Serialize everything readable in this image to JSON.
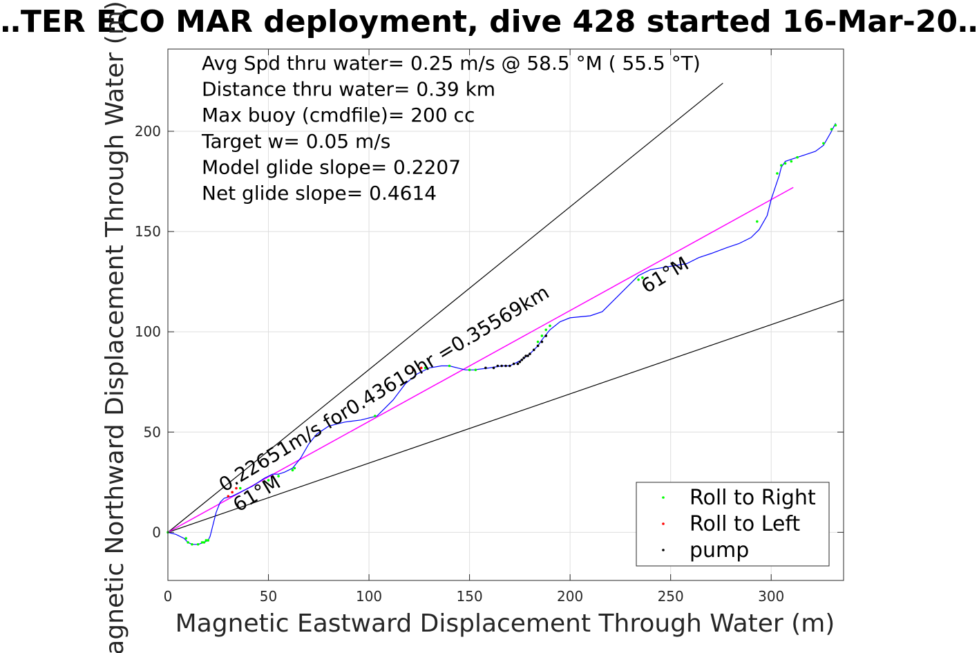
{
  "chart_data": {
    "type": "scatter",
    "title": "…TER ECO MAR deployment, dive 428 started 16-Mar-20…",
    "xlabel": "Magnetic Eastward Displacement Through Water (m)",
    "ylabel": "Magnetic Northward Displacement Through Water (m)",
    "xlim": [
      0,
      336
    ],
    "ylim": [
      -24,
      241
    ],
    "xticks": [
      0,
      50,
      100,
      150,
      200,
      250,
      300
    ],
    "yticks": [
      0,
      50,
      100,
      150,
      200
    ],
    "grid": true,
    "legend_position": "bottom-right",
    "stats_lines": [
      "Avg Spd thru water=  0.25 m/s @  58.5 °M ( 55.5 °T)",
      "Distance thru water=  0.39 km",
      "Max buoy (cmdfile)= 200 cc",
      "Target w= 0.05 m/s",
      "Model glide slope= 0.2207",
      "Net glide slope= 0.4614"
    ],
    "annotations": [
      {
        "text": "0.22651m/s for0.43619hr =0.35569km",
        "x": 28,
        "y": 20,
        "angle_deg": 31
      },
      {
        "text": "61°M",
        "x": 35,
        "y": 10,
        "angle_deg": 31
      },
      {
        "text": "61°M",
        "x": 238,
        "y": 119,
        "angle_deg": 31
      }
    ],
    "colors": {
      "track": "#0000ff",
      "roll_right": "#00ff00",
      "roll_left": "#ff0000",
      "pump": "#000000",
      "avg_line": "#ff00ff",
      "bound_lines": "#000000"
    },
    "track_line": {
      "x": [
        0,
        4,
        8,
        10,
        12,
        15,
        18,
        20,
        21,
        22,
        24,
        26,
        28,
        32,
        36,
        42,
        48,
        52,
        55,
        58,
        62,
        66,
        70,
        74,
        80,
        88,
        96,
        104,
        108,
        112,
        118,
        124,
        130,
        136,
        140,
        144,
        148,
        152,
        160,
        166,
        170,
        172,
        174,
        176,
        180,
        184,
        186,
        190,
        195,
        200,
        210,
        216,
        222,
        228,
        234,
        240,
        246,
        252,
        258,
        264,
        270,
        278,
        284,
        290,
        294,
        298,
        300,
        302,
        304,
        305,
        307,
        310,
        316,
        322,
        326,
        330,
        332
      ],
      "y": [
        0,
        -1,
        -3,
        -5,
        -6,
        -6,
        -5,
        -4,
        -2,
        2,
        10,
        15,
        17,
        18,
        20,
        23,
        27,
        29,
        29,
        30,
        32,
        37,
        44,
        49,
        53,
        55,
        56,
        58,
        62,
        66,
        74,
        79,
        82,
        83,
        83,
        82,
        81,
        81,
        82,
        83,
        83,
        84,
        85,
        86,
        89,
        93,
        96,
        101,
        105,
        107,
        108,
        110,
        116,
        122,
        128,
        131,
        132,
        133,
        134,
        137,
        139,
        142,
        144,
        147,
        151,
        158,
        166,
        172,
        178,
        182,
        185,
        186,
        188,
        190,
        193,
        200,
        204
      ]
    },
    "avg_line": {
      "x": [
        0,
        311
      ],
      "y": [
        0,
        172
      ]
    },
    "bound_lines": [
      {
        "x": [
          0,
          276
        ],
        "y": [
          0,
          224
        ]
      },
      {
        "x": [
          0,
          336
        ],
        "y": [
          0,
          116
        ]
      }
    ],
    "series": [
      {
        "name": "Roll to Right",
        "x": [
          0,
          9,
          10,
          12,
          15,
          17,
          18,
          19,
          20,
          36,
          50,
          55,
          62,
          63,
          103,
          128,
          140,
          150,
          153,
          184,
          186,
          188,
          190,
          234,
          236,
          293,
          303,
          305,
          307,
          310,
          313,
          326,
          330,
          332
        ],
        "y": [
          0,
          -3,
          -5,
          -6,
          -6,
          -5,
          -5,
          -4,
          -4,
          22,
          26,
          28,
          31,
          32,
          58,
          82,
          83,
          81,
          81,
          95,
          98,
          101,
          103,
          126,
          127,
          155,
          179,
          183,
          184,
          185,
          187,
          194,
          201,
          203
        ]
      },
      {
        "name": "Roll to Left",
        "x": [
          30,
          32,
          34,
          122,
          126
        ],
        "y": [
          18,
          20,
          22,
          81,
          82
        ]
      },
      {
        "name": "pump",
        "x": [
          158,
          162,
          164,
          166,
          168,
          170,
          172,
          174,
          175,
          176,
          177,
          178,
          179,
          180,
          182,
          184,
          186,
          188
        ],
        "y": [
          82,
          82,
          83,
          83,
          83,
          83,
          84,
          84,
          85,
          86,
          87,
          88,
          88,
          89,
          91,
          93,
          95,
          98
        ]
      }
    ]
  }
}
